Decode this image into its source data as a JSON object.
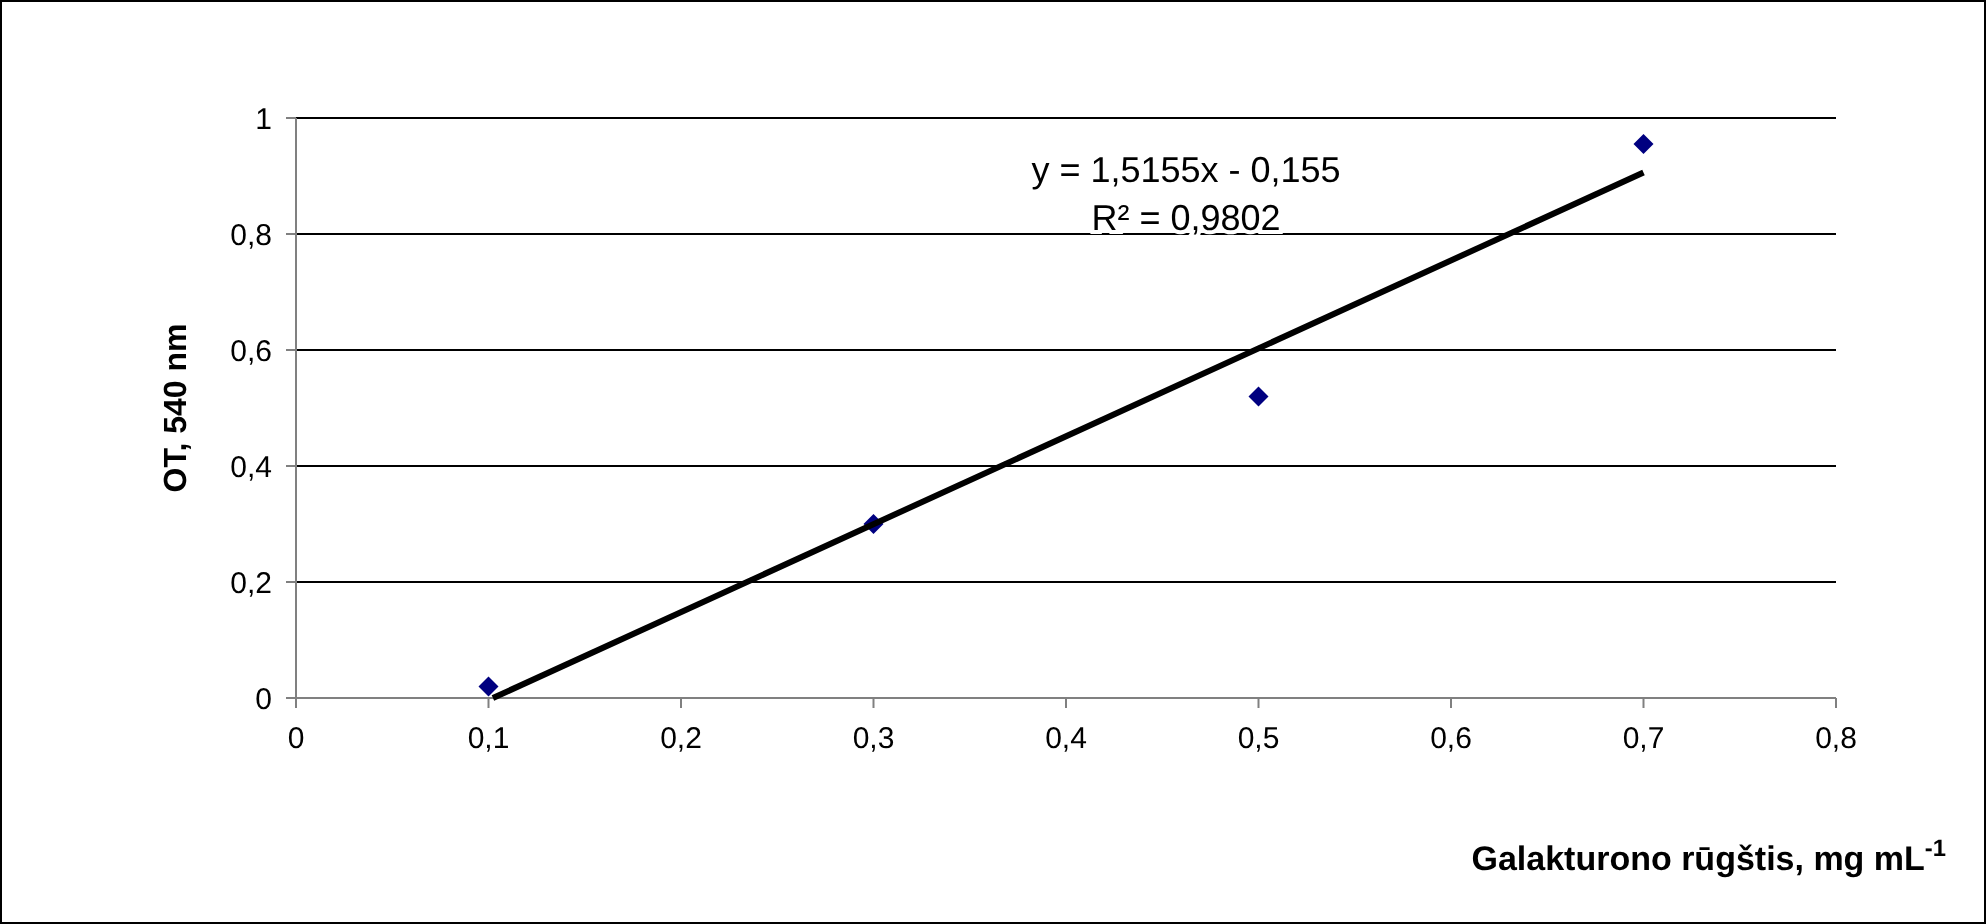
{
  "chart_data": {
    "type": "scatter",
    "xlabel": "Galakturono rūgštis, mg mL$^{-1}$",
    "ylabel": "OT, 540 nm",
    "xlim": [
      0,
      0.8
    ],
    "ylim": [
      0,
      1
    ],
    "xticks": [
      0,
      {
        "value": 0.1,
        "label": "0,1"
      },
      {
        "value": 0.2,
        "label": "0,2"
      },
      {
        "value": 0.3,
        "label": "0,3"
      },
      {
        "value": 0.4,
        "label": "0,4"
      },
      {
        "value": 0.5,
        "label": "0,5"
      },
      {
        "value": 0.6,
        "label": "0,6"
      },
      {
        "value": 0.7,
        "label": "0,7"
      },
      {
        "value": 0.8,
        "label": "0,8"
      }
    ],
    "yticks": [
      0,
      {
        "value": 0.2,
        "label": "0,2"
      },
      {
        "value": 0.4,
        "label": "0,4"
      },
      {
        "value": 0.6,
        "label": "0,6"
      },
      {
        "value": 0.8,
        "label": "0,8"
      },
      1
    ],
    "grid": "y",
    "series": [
      {
        "color": "#000080",
        "marker": "diamond",
        "x": [
          0.1,
          0.3,
          0.5,
          0.7
        ],
        "values": [
          0.02,
          0.3,
          0.52,
          0.955
        ]
      },
      {
        "type": "line",
        "color": "#000000",
        "marker": "none",
        "line_style": "solid",
        "x": [
          0.1023,
          0.7
        ],
        "values": [
          0,
          0.906
        ]
      }
    ],
    "annotations": [
      "y = 1,5155x - 0,155",
      "R² = 0,9802"
    ]
  }
}
